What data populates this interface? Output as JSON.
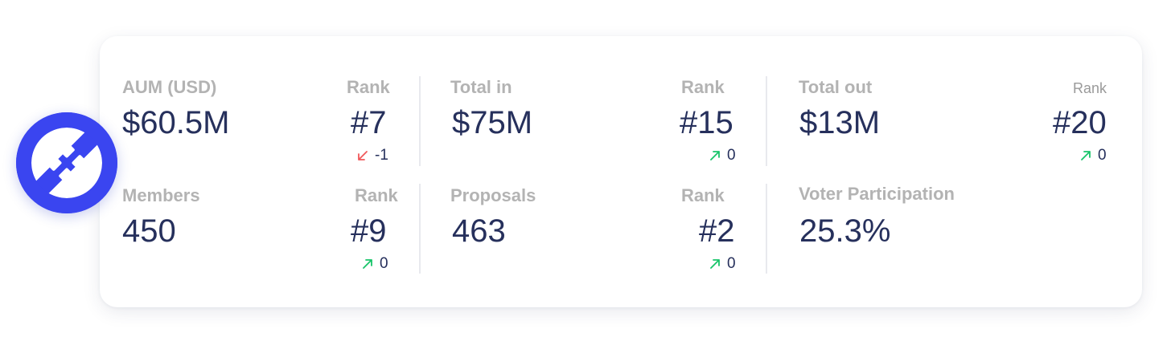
{
  "colors": {
    "brand": "#3a45f0",
    "value_text": "#26305c",
    "label_text": "#b3b3b3",
    "up": "#18c46a",
    "down": "#f0585a"
  },
  "logo": {
    "icon": "dao-logo-icon"
  },
  "stats": {
    "aum": {
      "label": "AUM (USD)",
      "value": "$60.5M",
      "rank_label": "Rank",
      "rank": "#7",
      "change_icon": "arrow-down-left-icon",
      "change": "-1"
    },
    "total_in": {
      "label": "Total in",
      "value": "$75M",
      "rank_label": "Rank",
      "rank": "#15",
      "change_icon": "arrow-up-right-icon",
      "change": "0"
    },
    "total_out": {
      "label": "Total out",
      "value": "$13M",
      "rank_label": "Rank",
      "rank": "#20",
      "change_icon": "arrow-up-right-icon",
      "change": "0"
    },
    "members": {
      "label": "Members",
      "value": "450",
      "rank_label": "Rank",
      "rank": "#9",
      "change_icon": "arrow-up-right-icon",
      "change": "0"
    },
    "proposals": {
      "label": "Proposals",
      "value": "463",
      "rank_label": "Rank",
      "rank": "#2",
      "change_icon": "arrow-up-right-icon",
      "change": "0"
    },
    "voter_participation": {
      "label": "Voter Participation",
      "value": "25.3%"
    }
  }
}
